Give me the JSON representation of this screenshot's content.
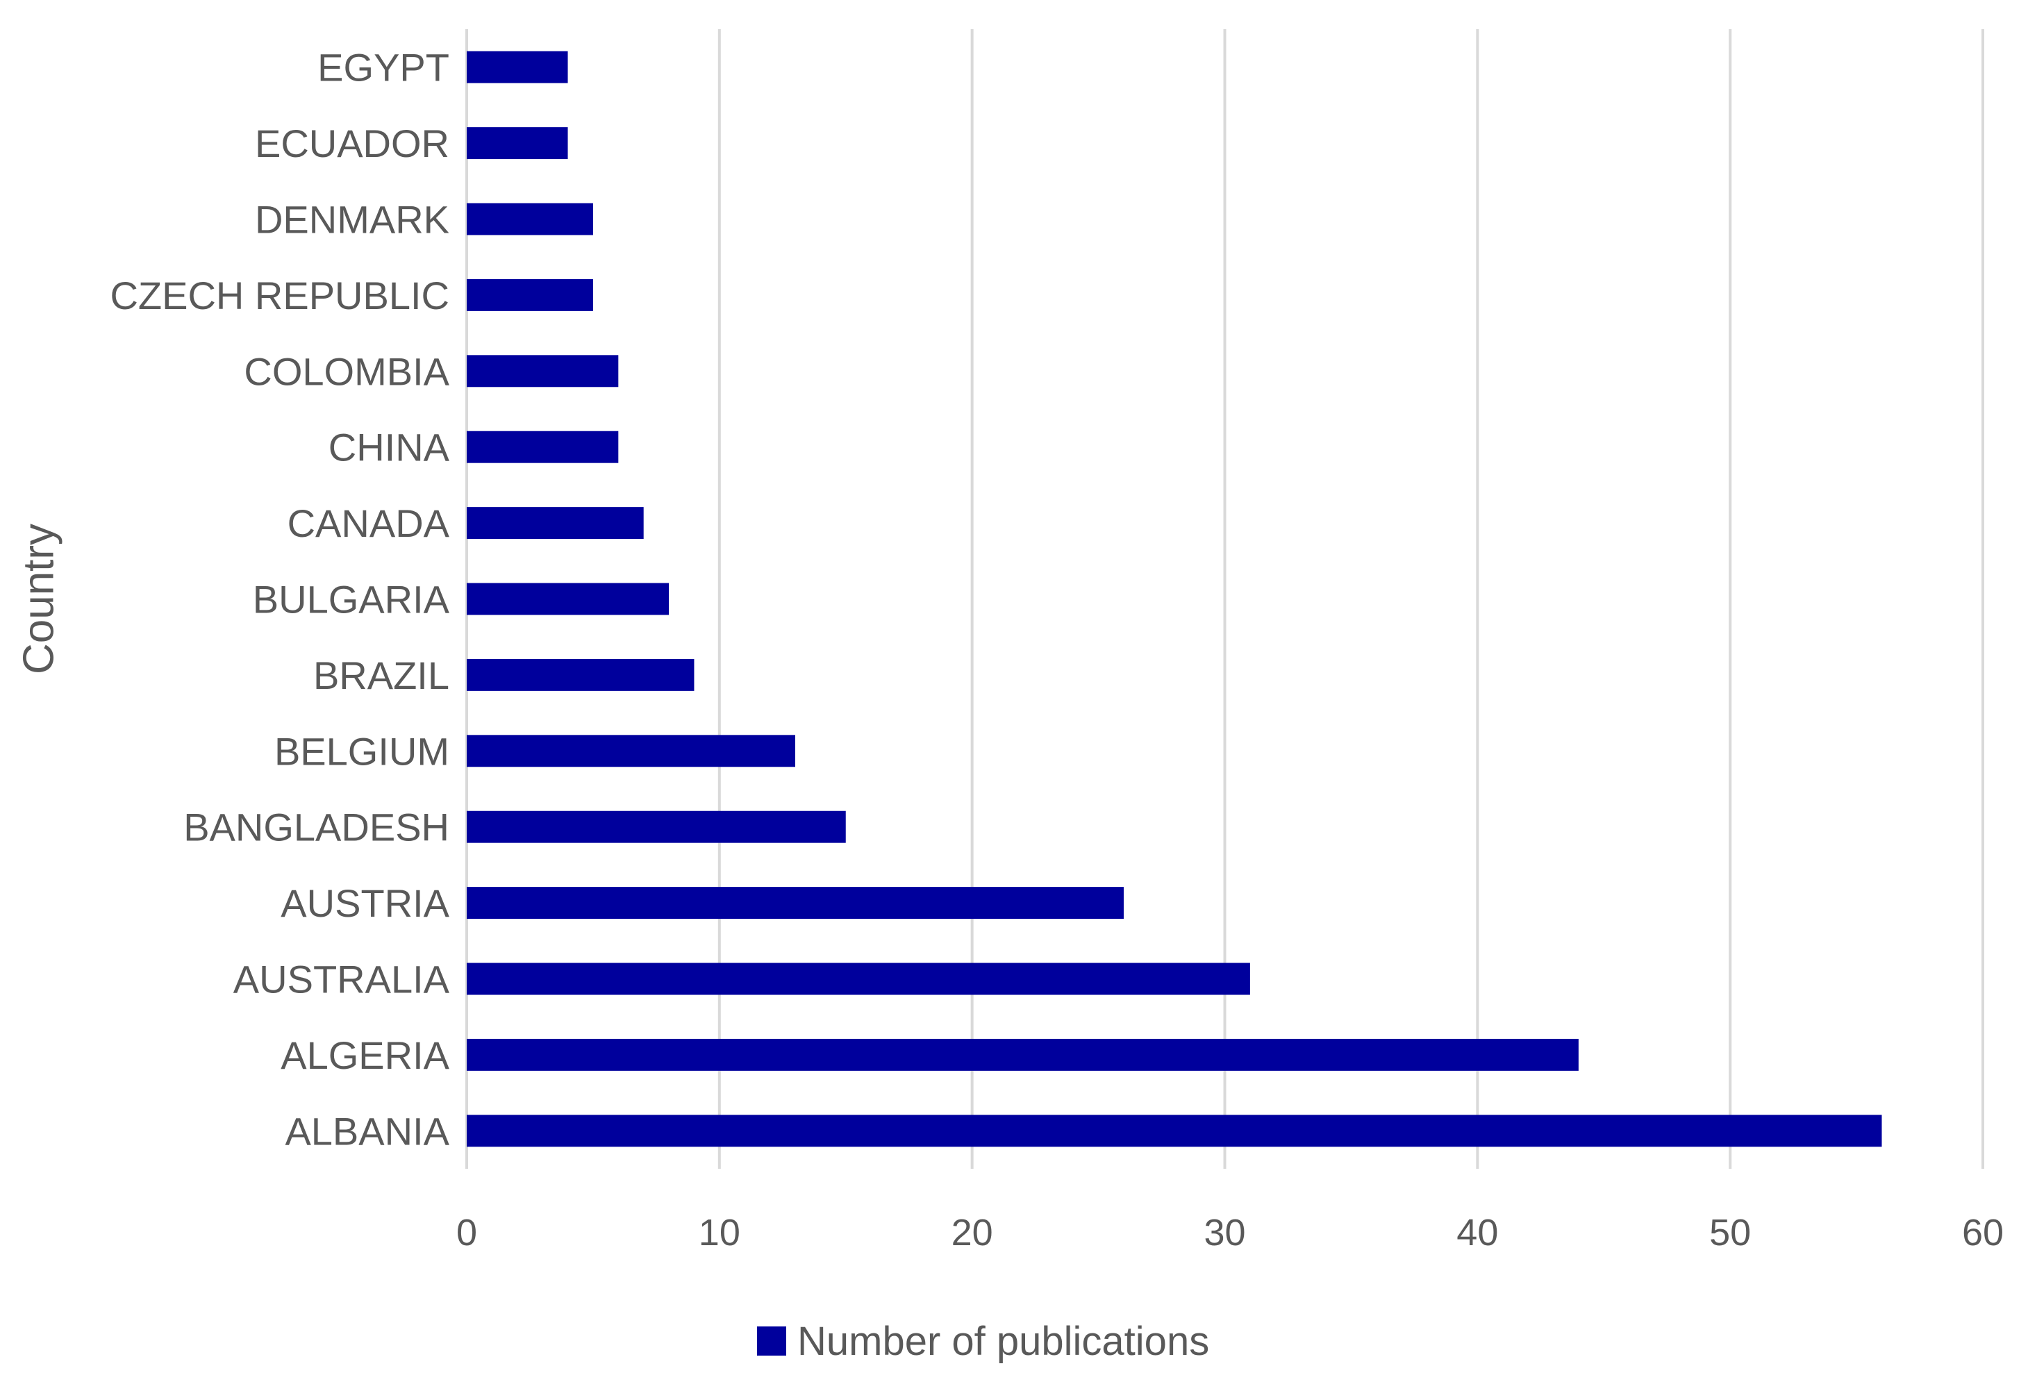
{
  "chart_data": {
    "type": "bar",
    "orientation": "horizontal",
    "title": "",
    "xlabel": "",
    "ylabel": "Country",
    "categories": [
      "ALBANIA",
      "ALGERIA",
      "AUSTRALIA",
      "AUSTRIA",
      "BANGLADESH",
      "BELGIUM",
      "BRAZIL",
      "BULGARIA",
      "CANADA",
      "CHINA",
      "COLOMBIA",
      "CZECH REPUBLIC",
      "DENMARK",
      "ECUADOR",
      "EGYPT"
    ],
    "series": [
      {
        "name": "Number of publications",
        "values": [
          56,
          44,
          31,
          26,
          15,
          13,
          9,
          8,
          7,
          6,
          6,
          5,
          5,
          4,
          4
        ],
        "color": "#00009c"
      }
    ],
    "xlim": [
      0,
      60
    ],
    "xticks": [
      0,
      10,
      20,
      30,
      40,
      50,
      60
    ],
    "grid": true,
    "legend_position": "bottom"
  }
}
